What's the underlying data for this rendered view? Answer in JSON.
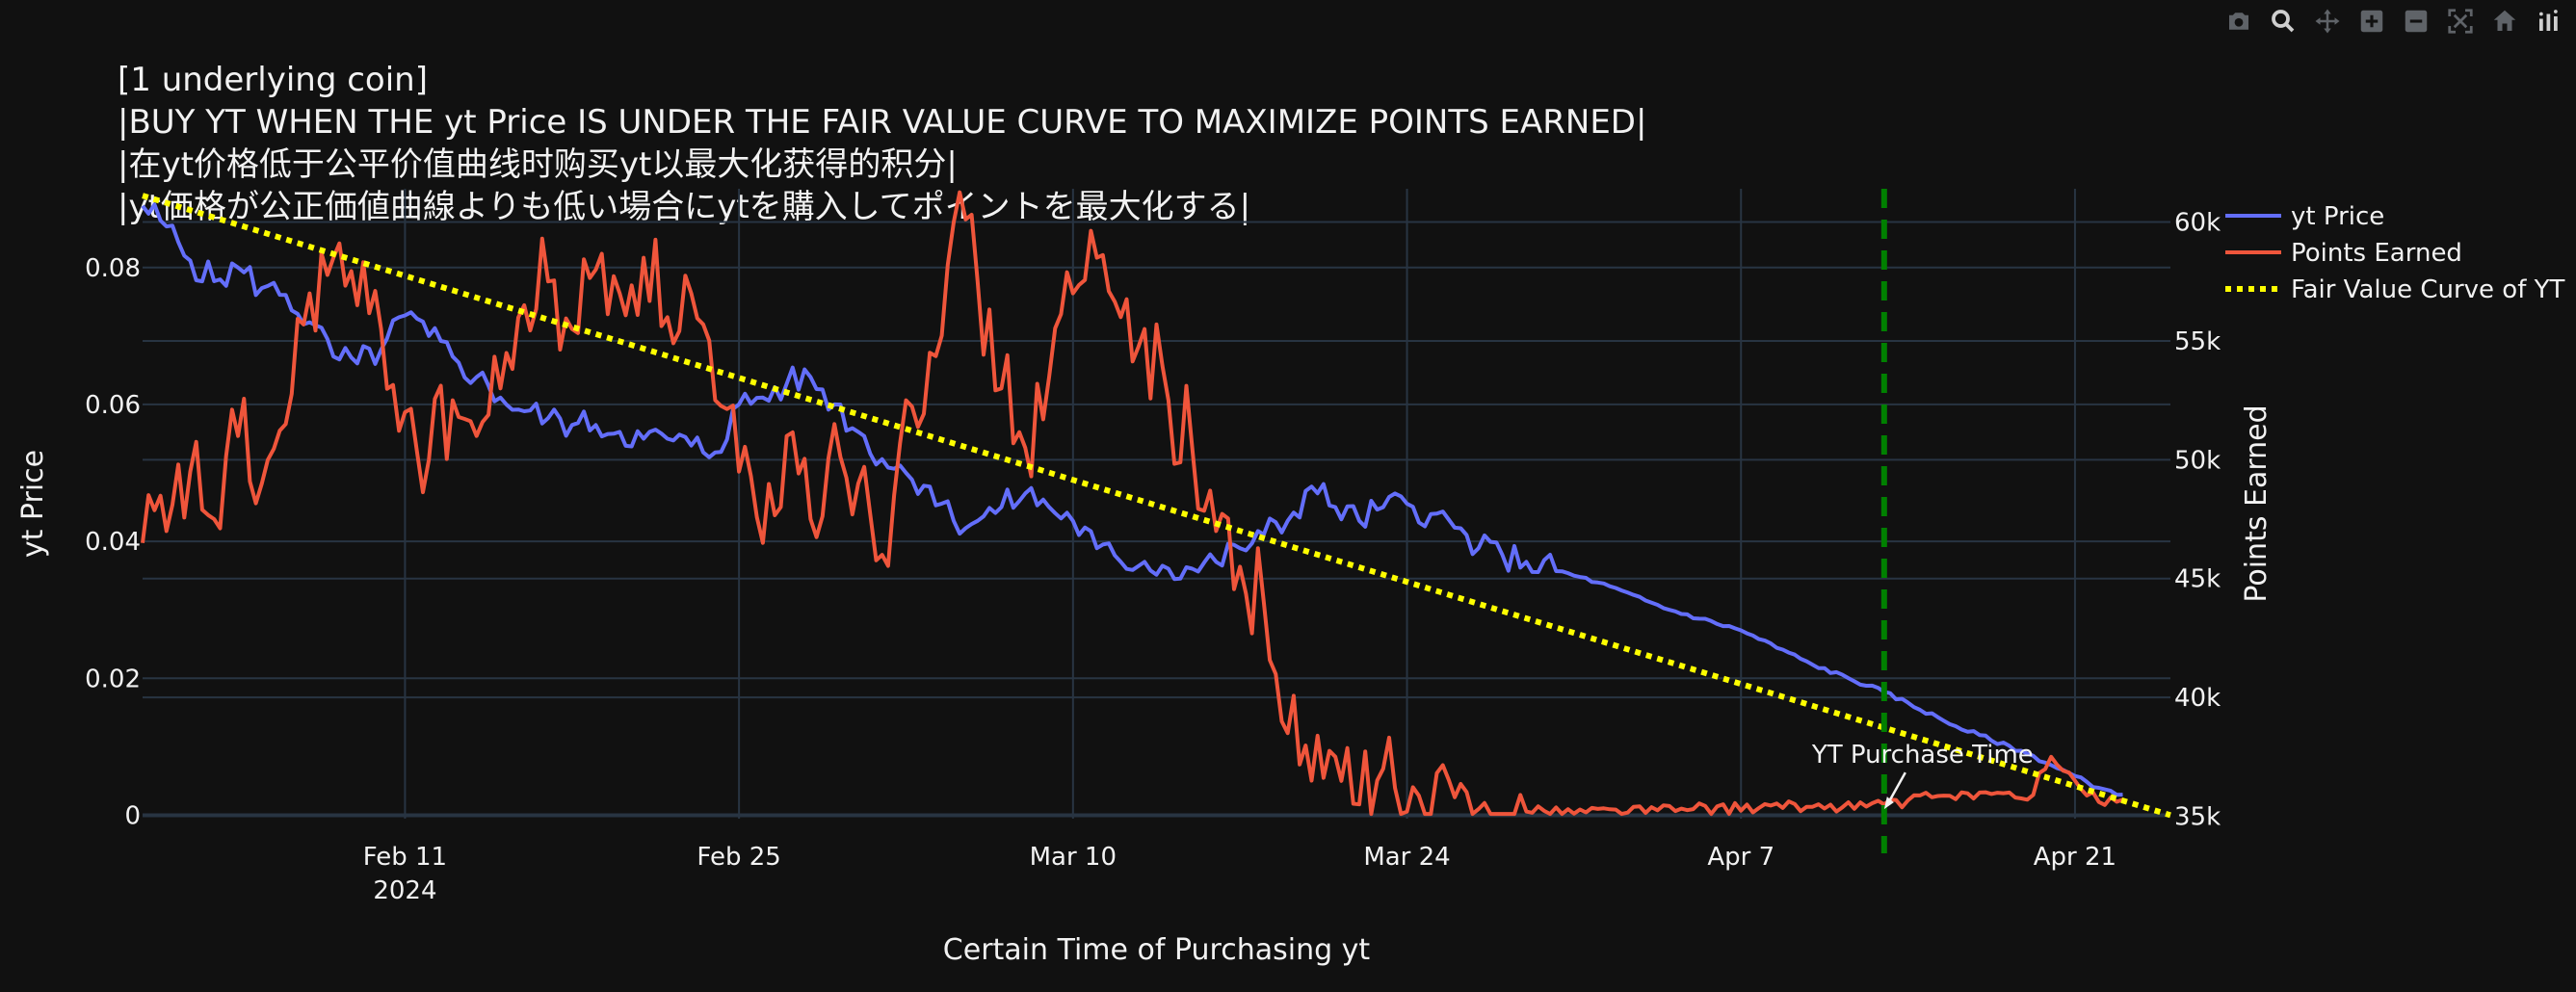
{
  "colors": {
    "background": "#111111",
    "grid": "#283442",
    "text": "#f2f2f2",
    "modebar_icon": "#5f6368"
  },
  "modebar": {
    "icons": [
      "camera-icon",
      "zoom-icon",
      "pan-icon",
      "zoom-in-icon",
      "zoom-out-icon",
      "autoscale-icon",
      "home-icon",
      "plotly-logo-icon"
    ]
  },
  "chart_data": {
    "type": "line",
    "title": [
      "[1 underlying coin]",
      "|BUY YT WHEN THE yt Price IS UNDER THE FAIR VALUE CURVE TO MAXIMIZE POINTS EARNED|",
      "|在yt价格低于公平价值曲线时购买yt以最大化获得的积分|",
      "|yt価格が公正価値曲線よりも低い場合にytを購入してポイントを最大化する|"
    ],
    "xlabel": "Certain Time of Purchasing yt",
    "ylabel": "yt Price",
    "y2label": "Points Earned",
    "x_range": [
      "2024-01-31",
      "2024-04-25"
    ],
    "y_range": [
      -0.0005,
      0.0915
    ],
    "y2_range": [
      34900,
      61400
    ],
    "x_ticks": [
      {
        "date": "2024-02-11",
        "label": "Feb 11",
        "sublabel": "2024"
      },
      {
        "date": "2024-02-25",
        "label": "Feb 25",
        "sublabel": ""
      },
      {
        "date": "2024-03-10",
        "label": "Mar 10",
        "sublabel": ""
      },
      {
        "date": "2024-03-24",
        "label": "Mar 24",
        "sublabel": ""
      },
      {
        "date": "2024-04-07",
        "label": "Apr 7",
        "sublabel": ""
      },
      {
        "date": "2024-04-21",
        "label": "Apr 21",
        "sublabel": ""
      }
    ],
    "y_ticks": [
      {
        "value": 0,
        "label": "0"
      },
      {
        "value": 0.02,
        "label": "0.02"
      },
      {
        "value": 0.04,
        "label": "0.04"
      },
      {
        "value": 0.06,
        "label": "0.06"
      },
      {
        "value": 0.08,
        "label": "0.08"
      }
    ],
    "y2_ticks": [
      {
        "value": 35000,
        "label": "35k"
      },
      {
        "value": 40000,
        "label": "40k"
      },
      {
        "value": 45000,
        "label": "45k"
      },
      {
        "value": 50000,
        "label": "50k"
      },
      {
        "value": 55000,
        "label": "55k"
      },
      {
        "value": 60000,
        "label": "60k"
      }
    ],
    "legend_position": "top-right",
    "grid": true,
    "series": [
      {
        "name": "yt Price",
        "axis": "y",
        "color": "#636efa",
        "dash": "solid",
        "points": [
          [
            "2024-01-31",
            0.089
          ],
          [
            "2024-02-01",
            0.086
          ],
          [
            "2024-02-02",
            0.081
          ],
          [
            "2024-02-03",
            0.078
          ],
          [
            "2024-02-04",
            0.08
          ],
          [
            "2024-02-05",
            0.077
          ],
          [
            "2024-02-06",
            0.076
          ],
          [
            "2024-02-07",
            0.072
          ],
          [
            "2024-02-08",
            0.067
          ],
          [
            "2024-02-09",
            0.066
          ],
          [
            "2024-02-10",
            0.068
          ],
          [
            "2024-02-11",
            0.073
          ],
          [
            "2024-02-12",
            0.07
          ],
          [
            "2024-02-13",
            0.067
          ],
          [
            "2024-02-14",
            0.064
          ],
          [
            "2024-02-15",
            0.061
          ],
          [
            "2024-02-16",
            0.059
          ],
          [
            "2024-02-17",
            0.058
          ],
          [
            "2024-02-18",
            0.057
          ],
          [
            "2024-02-19",
            0.057
          ],
          [
            "2024-02-20",
            0.056
          ],
          [
            "2024-02-21",
            0.055
          ],
          [
            "2024-02-22",
            0.055
          ],
          [
            "2024-02-23",
            0.054
          ],
          [
            "2024-02-24",
            0.053
          ],
          [
            "2024-02-25",
            0.06
          ],
          [
            "2024-02-26",
            0.061
          ],
          [
            "2024-02-27",
            0.063
          ],
          [
            "2024-02-28",
            0.064
          ],
          [
            "2024-02-29",
            0.06
          ],
          [
            "2024-03-01",
            0.056
          ],
          [
            "2024-03-02",
            0.052
          ],
          [
            "2024-03-03",
            0.05
          ],
          [
            "2024-03-04",
            0.048
          ],
          [
            "2024-03-05",
            0.043
          ],
          [
            "2024-03-06",
            0.043
          ],
          [
            "2024-03-07",
            0.045
          ],
          [
            "2024-03-08",
            0.047
          ],
          [
            "2024-03-09",
            0.045
          ],
          [
            "2024-03-10",
            0.043
          ],
          [
            "2024-03-11",
            0.039
          ],
          [
            "2024-03-12",
            0.037
          ],
          [
            "2024-03-13",
            0.037
          ],
          [
            "2024-03-14",
            0.036
          ],
          [
            "2024-03-15",
            0.036
          ],
          [
            "2024-03-16",
            0.037
          ],
          [
            "2024-03-17",
            0.039
          ],
          [
            "2024-03-18",
            0.041
          ],
          [
            "2024-03-19",
            0.043
          ],
          [
            "2024-03-20",
            0.048
          ],
          [
            "2024-03-21",
            0.045
          ],
          [
            "2024-03-22",
            0.043
          ],
          [
            "2024-03-23",
            0.045
          ],
          [
            "2024-03-24",
            0.0455
          ],
          [
            "2024-03-25",
            0.044
          ],
          [
            "2024-03-26",
            0.042
          ],
          [
            "2024-03-27",
            0.039
          ],
          [
            "2024-03-28",
            0.038
          ],
          [
            "2024-03-29",
            0.037
          ],
          [
            "2024-04-01",
            0.034
          ],
          [
            "2024-04-04",
            0.03
          ],
          [
            "2024-04-07",
            0.027
          ],
          [
            "2024-04-10",
            0.022
          ],
          [
            "2024-04-13",
            0.018
          ],
          [
            "2024-04-16",
            0.013
          ],
          [
            "2024-04-19",
            0.009
          ],
          [
            "2024-04-22",
            0.004
          ],
          [
            "2024-04-23",
            0.003
          ]
        ]
      },
      {
        "name": "Points Earned",
        "axis": "y2",
        "color": "#ef553b",
        "dash": "solid",
        "points": [
          [
            "2024-01-31",
            46500
          ],
          [
            "2024-02-01",
            47000
          ],
          [
            "2024-02-02",
            49500
          ],
          [
            "2024-02-03",
            47500
          ],
          [
            "2024-02-04",
            51000
          ],
          [
            "2024-02-05",
            49000
          ],
          [
            "2024-02-06",
            51500
          ],
          [
            "2024-02-07",
            57000
          ],
          [
            "2024-02-08",
            58500
          ],
          [
            "2024-02-09",
            56500
          ],
          [
            "2024-02-10",
            55500
          ],
          [
            "2024-02-11",
            52000
          ],
          [
            "2024-02-12",
            50000
          ],
          [
            "2024-02-13",
            52500
          ],
          [
            "2024-02-14",
            51000
          ],
          [
            "2024-02-15",
            53000
          ],
          [
            "2024-02-16",
            56500
          ],
          [
            "2024-02-17",
            57500
          ],
          [
            "2024-02-18",
            55500
          ],
          [
            "2024-02-19",
            58000
          ],
          [
            "2024-02-20",
            57000
          ],
          [
            "2024-02-21",
            58500
          ],
          [
            "2024-02-22",
            56000
          ],
          [
            "2024-02-23",
            57000
          ],
          [
            "2024-02-24",
            52500
          ],
          [
            "2024-02-25",
            49500
          ],
          [
            "2024-02-26",
            46500
          ],
          [
            "2024-02-27",
            51000
          ],
          [
            "2024-02-28",
            47500
          ],
          [
            "2024-02-29",
            51500
          ],
          [
            "2024-03-01",
            49000
          ],
          [
            "2024-03-02",
            46000
          ],
          [
            "2024-03-03",
            52500
          ],
          [
            "2024-03-04",
            54500
          ],
          [
            "2024-03-05",
            60000
          ],
          [
            "2024-03-06",
            57500
          ],
          [
            "2024-03-07",
            53000
          ],
          [
            "2024-03-08",
            50500
          ],
          [
            "2024-03-09",
            53500
          ],
          [
            "2024-03-10",
            57000
          ],
          [
            "2024-03-11",
            58500
          ],
          [
            "2024-03-12",
            56000
          ],
          [
            "2024-03-13",
            55500
          ],
          [
            "2024-03-14",
            52500
          ],
          [
            "2024-03-15",
            50500
          ],
          [
            "2024-03-16",
            47000
          ],
          [
            "2024-03-17",
            45500
          ],
          [
            "2024-03-18",
            44000
          ],
          [
            "2024-03-19",
            38500
          ],
          [
            "2024-03-20",
            36500
          ],
          [
            "2024-03-21",
            37500
          ],
          [
            "2024-03-22",
            35500
          ],
          [
            "2024-03-23",
            37000
          ],
          [
            "2024-03-24",
            35200
          ],
          [
            "2024-03-25",
            35100
          ],
          [
            "2024-03-26",
            35800
          ],
          [
            "2024-03-27",
            35300
          ],
          [
            "2024-03-28",
            35100
          ],
          [
            "2024-03-29",
            35200
          ],
          [
            "2024-04-05",
            35300
          ],
          [
            "2024-04-10",
            35400
          ],
          [
            "2024-04-13",
            35500
          ],
          [
            "2024-04-15",
            35800
          ],
          [
            "2024-04-17",
            36000
          ],
          [
            "2024-04-19",
            35700
          ],
          [
            "2024-04-20",
            37500
          ],
          [
            "2024-04-21",
            36500
          ],
          [
            "2024-04-22",
            35600
          ],
          [
            "2024-04-23",
            35700
          ]
        ]
      },
      {
        "name": "Fair Value Curve of YT",
        "axis": "y",
        "color": "#ffff00",
        "dash": "dot",
        "points": [
          [
            "2024-01-31",
            0.0905
          ],
          [
            "2024-04-25",
            0
          ]
        ]
      }
    ],
    "vertical_line": {
      "date": "2024-04-13",
      "color": "#008000",
      "dash": "dash"
    },
    "annotation": {
      "text": "YT Purchase Time",
      "date": "2024-04-13",
      "y2": 35300
    }
  }
}
